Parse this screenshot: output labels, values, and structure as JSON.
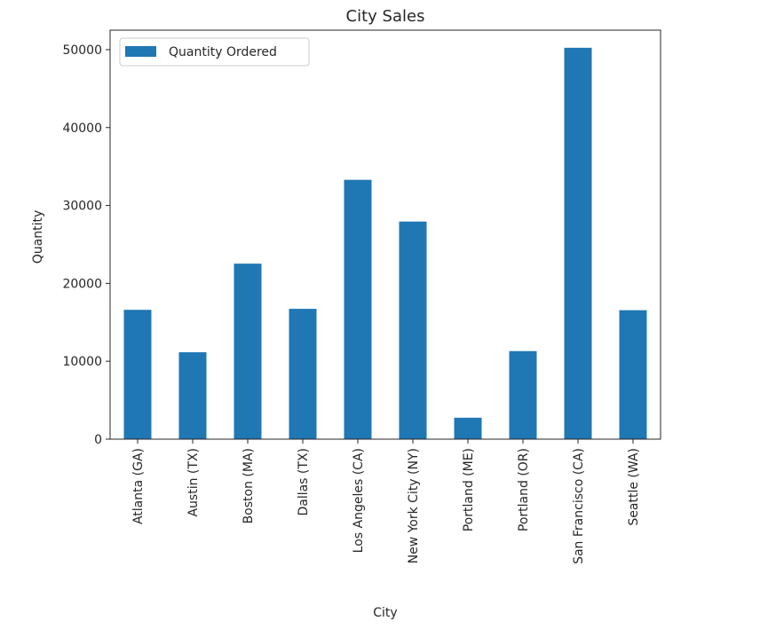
{
  "chart_data": {
    "type": "bar",
    "title": "City Sales",
    "xlabel": "City",
    "ylabel": "Quantity",
    "categories": [
      "Atlanta (GA)",
      "Austin (TX)",
      "Boston (MA)",
      "Dallas (TX)",
      "Los Angeles (CA)",
      "New York City (NY)",
      "Portland (ME)",
      "Portland (OR)",
      "San Francisco (CA)",
      "Seattle (WA)"
    ],
    "series": [
      {
        "name": "Quantity Ordered",
        "color": "#1f77b4",
        "values": [
          16602,
          11153,
          22528,
          16730,
          33289,
          27932,
          2750,
          11303,
          50239,
          16553
        ]
      }
    ],
    "ylim": [
      0,
      52500
    ],
    "yticks": [
      0,
      10000,
      20000,
      30000,
      40000,
      50000
    ],
    "grid": false,
    "legend": "top-left"
  }
}
